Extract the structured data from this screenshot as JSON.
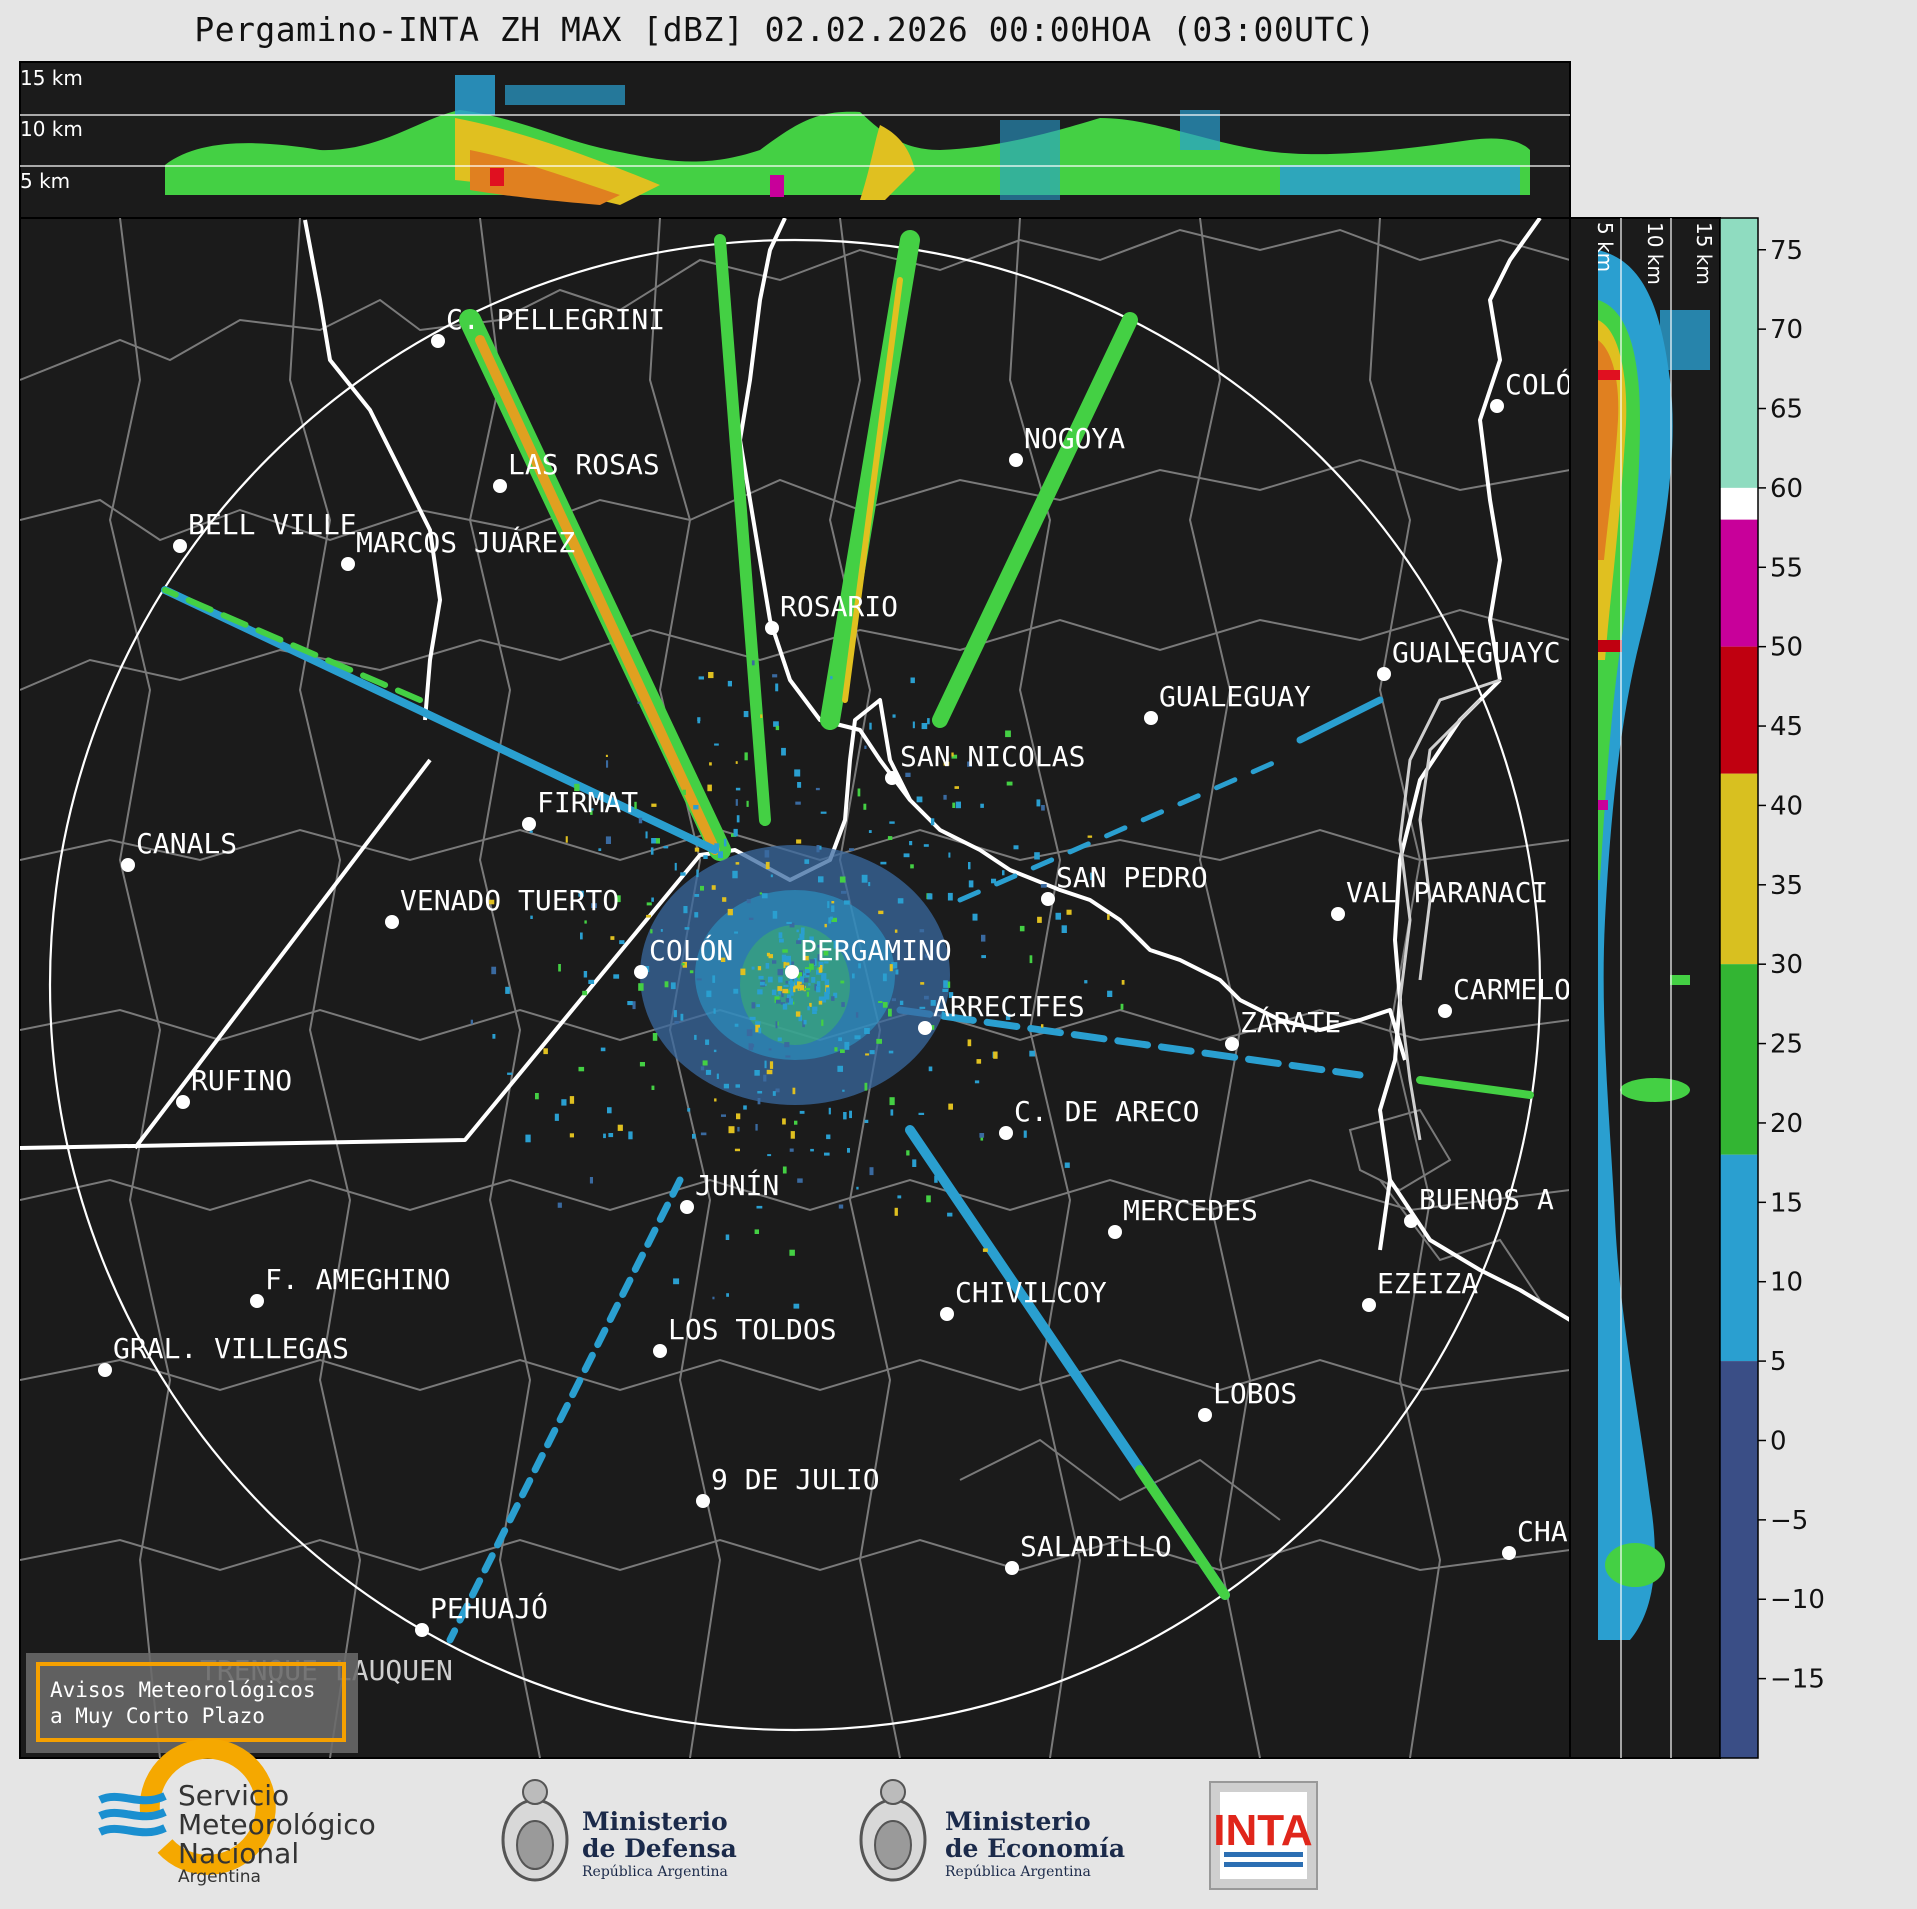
{
  "title": "Pergamino-INTA ZH MAX [dBZ] 02.02.2026 00:00HOA (03:00UTC)",
  "top_panel": {
    "height_labels": [
      "15 km",
      "10 km",
      "5 km"
    ]
  },
  "side_panel": {
    "height_labels": [
      "5 km",
      "10 km",
      "15 km"
    ]
  },
  "colorbar": {
    "unit": "dBZ",
    "ticks": [
      "75",
      "70",
      "65",
      "60",
      "55",
      "50",
      "45",
      "40",
      "35",
      "30",
      "25",
      "20",
      "15",
      "10",
      "5",
      "0",
      "−5",
      "−10",
      "−15"
    ],
    "bands": [
      {
        "from": 60,
        "to": 77,
        "color": "#8fdcc0"
      },
      {
        "from": 58,
        "to": 60,
        "color": "#ffffff"
      },
      {
        "from": 50,
        "to": 58,
        "color": "#c8009a"
      },
      {
        "from": 42,
        "to": 50,
        "color": "#c00010"
      },
      {
        "from": 30,
        "to": 42,
        "color": "#d8c020"
      },
      {
        "from": 18,
        "to": 30,
        "color": "#33b533"
      },
      {
        "from": 5,
        "to": 18,
        "color": "#2a9fd0"
      },
      {
        "from": -20,
        "to": 5,
        "color": "#3a4e86"
      }
    ]
  },
  "cities": [
    {
      "name": "C. PELLEGRINI"
    },
    {
      "name": "LAS ROSAS"
    },
    {
      "name": "NOGOYA"
    },
    {
      "name": "BELL VILLE"
    },
    {
      "name": "MARCOS JUÁREZ"
    },
    {
      "name": "COLÓ"
    },
    {
      "name": "ROSARIO"
    },
    {
      "name": "GUALEGUAYC"
    },
    {
      "name": "GUALEGUAY"
    },
    {
      "name": "SAN NICOLAS"
    },
    {
      "name": "FIRMAT"
    },
    {
      "name": "CANALS"
    },
    {
      "name": "SAN PEDRO"
    },
    {
      "name": "VENADO TUERTO"
    },
    {
      "name": "VAL PARANACI"
    },
    {
      "name": "COLÓN"
    },
    {
      "name": "PERGAMINO"
    },
    {
      "name": "CARMELO"
    },
    {
      "name": "ARRECIFES"
    },
    {
      "name": "ZÁRATE"
    },
    {
      "name": "RUFINO"
    },
    {
      "name": "C. DE ARECO"
    },
    {
      "name": "JUNÍN"
    },
    {
      "name": "MERCEDES"
    },
    {
      "name": "BUENOS A"
    },
    {
      "name": "F. AMEGHINO"
    },
    {
      "name": "EZEIZA"
    },
    {
      "name": "CHIVILCOY"
    },
    {
      "name": "LOS TOLDOS"
    },
    {
      "name": "GRAL. VILLEGAS"
    },
    {
      "name": "LOBOS"
    },
    {
      "name": "9 DE JULIO"
    },
    {
      "name": "CHA"
    },
    {
      "name": "SALADILLO"
    },
    {
      "name": "PEHUAJÓ"
    },
    {
      "name": "TRENQUE LAUQUEN"
    }
  ],
  "warning_box": {
    "line1": "Avisos Meteorológicos",
    "line2": "a Muy Corto Plazo"
  },
  "logos": {
    "smn": {
      "line1": "Servicio",
      "line2": "Meteorológico",
      "line3": "Nacional",
      "line4": "Argentina",
      "color_blue": "#1a8fd0",
      "color_orange": "#f5a800"
    },
    "defensa": {
      "line1": "Ministerio",
      "line2": "de Defensa",
      "line3": "República Argentina"
    },
    "economia": {
      "line1": "Ministerio",
      "line2": "de Economía",
      "line3": "República Argentina"
    },
    "inta": {
      "text": "INTA",
      "color": "#e0261b"
    }
  }
}
